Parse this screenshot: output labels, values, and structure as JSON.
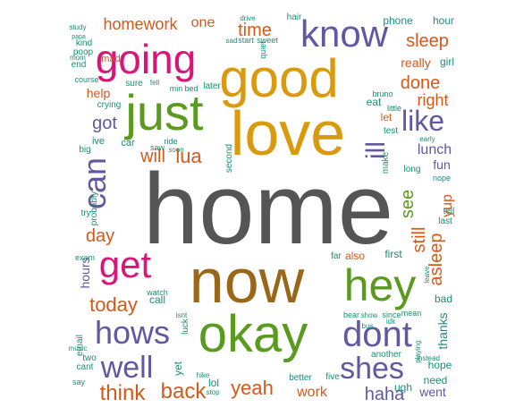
{
  "colors": {
    "gray": "#555555",
    "brown": "#9a6617",
    "green": "#5a9a1e",
    "gold": "#d99a0e",
    "pink": "#d9157a",
    "purple": "#6357a2",
    "orange": "#d4591a",
    "teal": "#1a8f74"
  },
  "words": [
    "home",
    "now",
    "okay",
    "love",
    "good",
    "just",
    "hey",
    "going",
    "know",
    "get",
    "hows",
    "dont",
    "like",
    "can",
    "well",
    "shes",
    "think",
    "back",
    "yeah",
    "today",
    "time",
    "homework",
    "got",
    "sleep",
    "lunch",
    "day",
    "done",
    "will",
    "lua",
    "right",
    "see",
    "still",
    "asleep",
    "yup",
    "haha",
    "work",
    "went",
    "ill",
    "one",
    "help",
    "really",
    "let",
    "hours",
    "fun",
    "thanks",
    "also",
    "call",
    "hope",
    "bad",
    "phone",
    "hour",
    "mad",
    "test",
    "tell",
    "last",
    "far",
    "first",
    "yet",
    "lol",
    "better",
    "five",
    "need",
    "ugh",
    "another",
    "girl",
    "eat",
    "min",
    "bed",
    "later",
    "sure",
    "fell",
    "crying",
    "course",
    "end",
    "two",
    "cant",
    "say",
    "probably",
    "try",
    "ive",
    "big",
    "car",
    "exam",
    "watch",
    "luck",
    "second",
    "make",
    "ride",
    "soon",
    "hair",
    "drive",
    "quiet",
    "sweet",
    "start",
    "sad",
    "kind",
    "poop",
    "mom",
    "bruno",
    "little",
    "email",
    "music",
    "hike",
    "stop",
    "bear",
    "show",
    "since",
    "mean",
    "nope",
    "long",
    "early",
    "instead",
    "playing",
    "leave",
    "bus",
    "idk",
    "isnt",
    "saw",
    "study",
    "papa"
  ]
}
